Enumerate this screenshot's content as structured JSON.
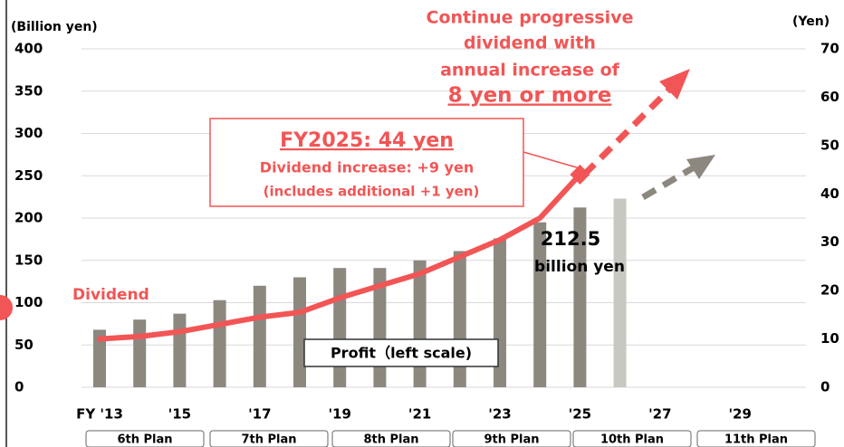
{
  "chart_data": {
    "type": "bar_line",
    "y_label": "(Billion yen)",
    "y2_label": "(Yen)",
    "categories": [
      "FY '13",
      null,
      "'15",
      null,
      "'17",
      null,
      "'19",
      null,
      "'21",
      null,
      "'23",
      null,
      "'25",
      null,
      "'27",
      null,
      "'29",
      null
    ],
    "series": [
      {
        "name": "Profit（left scale)",
        "type": "bar",
        "axis": "y",
        "colors": [
          "#8c8880",
          "#8c8880",
          "#8c8880",
          "#8c8880",
          "#8c8880",
          "#8c8880",
          "#8c8880",
          "#8c8880",
          "#8c8880",
          "#8c8880",
          "#8c8880",
          "#8c8880",
          "#8c8880",
          "#c8c8c2",
          null,
          null,
          null,
          null
        ],
        "values": [
          68,
          80,
          87,
          103,
          120,
          130,
          141,
          141,
          150,
          161,
          176,
          195,
          212.5,
          223,
          null,
          null,
          null,
          null
        ]
      },
      {
        "name": "Dividend",
        "type": "line",
        "axis": "y2",
        "color": "#f25555",
        "values": [
          10,
          10.5,
          11.5,
          13,
          14.5,
          15.5,
          18.5,
          21,
          23.5,
          27,
          30.5,
          35,
          44,
          null,
          null,
          null,
          null,
          null
        ]
      }
    ],
    "ylim": [
      0,
      400
    ],
    "yticks": [
      0,
      50,
      100,
      150,
      200,
      250,
      300,
      350,
      400
    ],
    "y2lim": [
      0,
      70
    ],
    "y2ticks": [
      0,
      10,
      20,
      30,
      40,
      50,
      60,
      70
    ],
    "grid": true,
    "annotations": [
      "Continue progressive",
      "dividend with",
      "annual increase of",
      "8 yen or more",
      "FY2025: 44 yen",
      "Dividend increase: +9 yen",
      "(includes additional +1 yen)",
      "billion yen"
    ],
    "plans": [
      "6th Plan",
      "7th Plan",
      "8th Plan",
      "9th Plan",
      "10th Plan",
      "11th Plan"
    ]
  }
}
